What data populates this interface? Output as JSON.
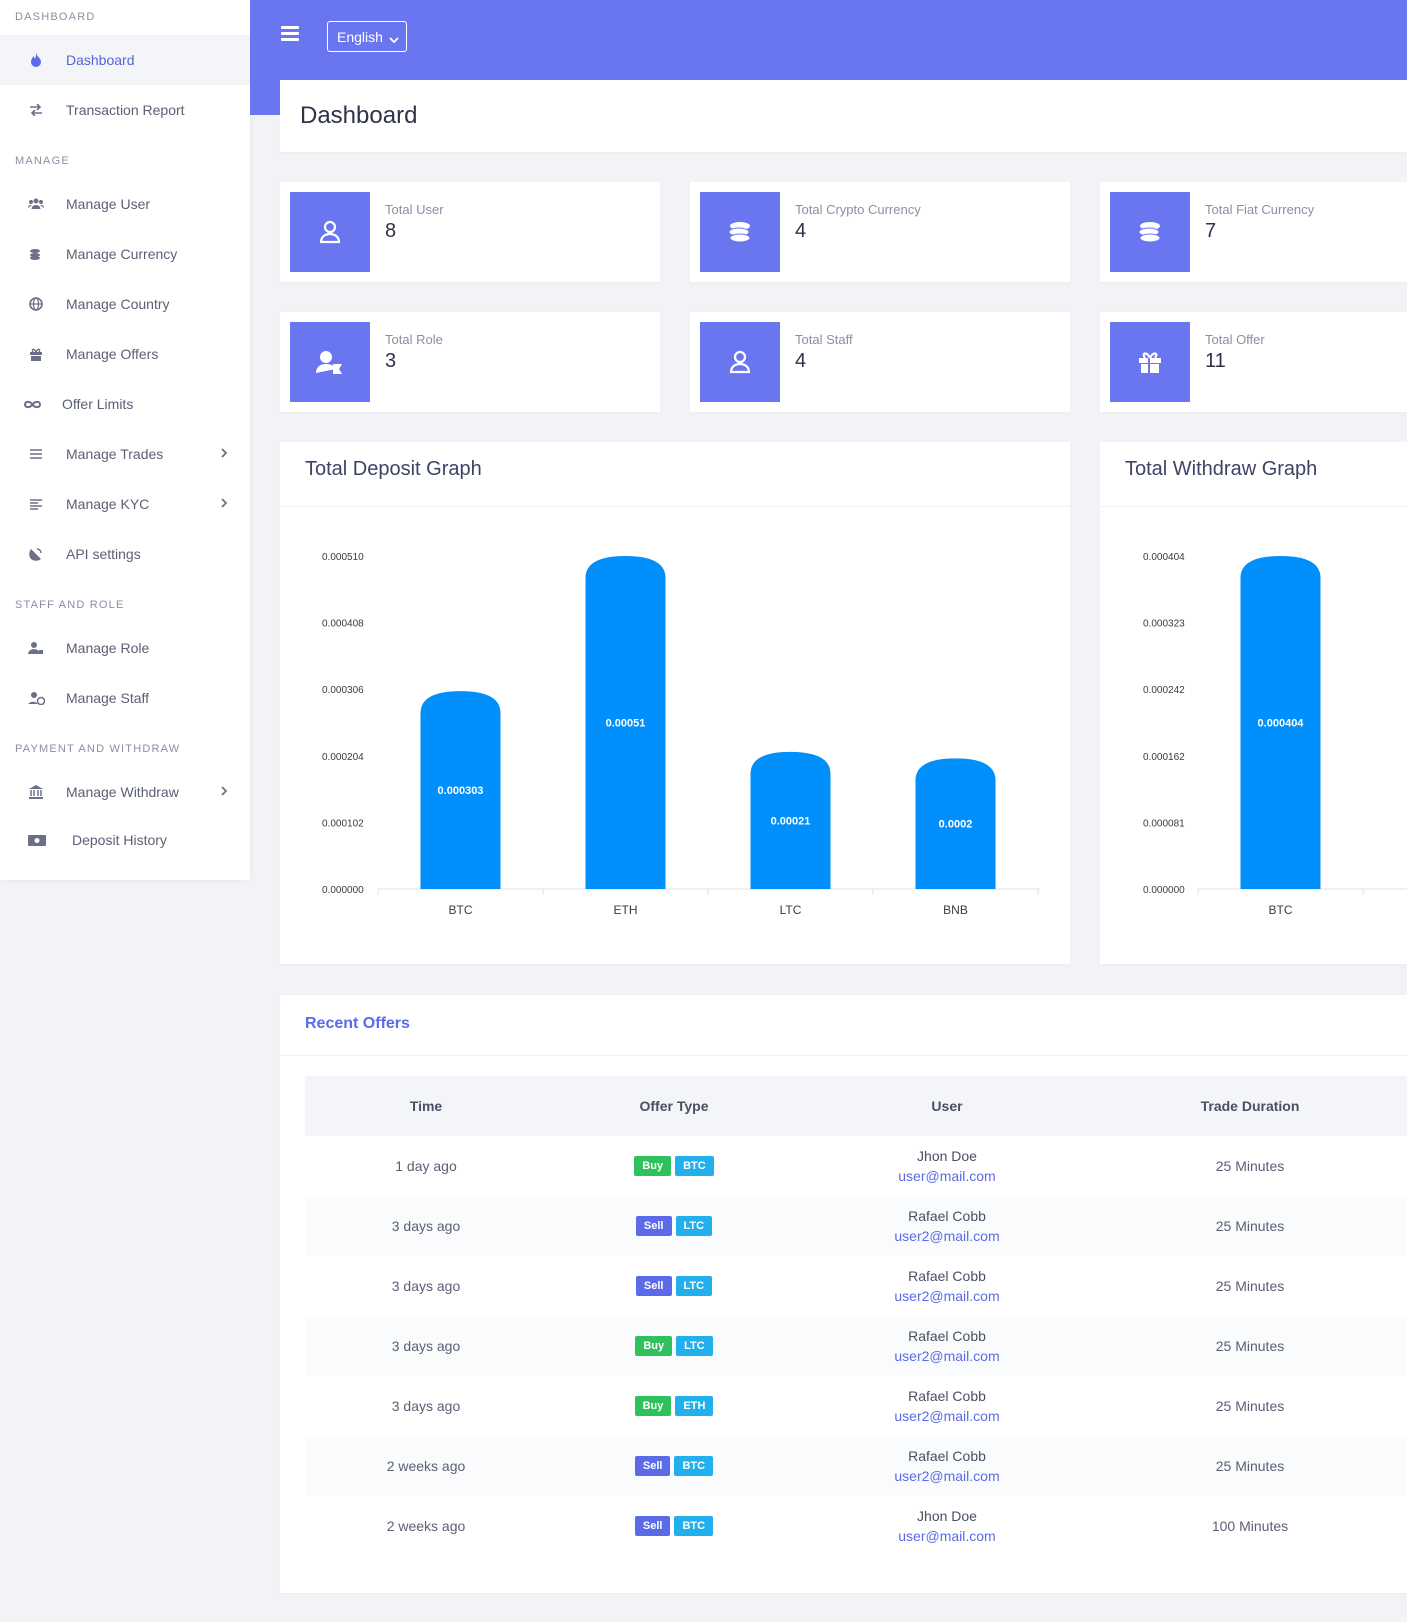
{
  "sidebar": {
    "sections": {
      "dashboard": "DASHBOARD",
      "manage": "MANAGE",
      "staff": "STAFF AND ROLE",
      "payment": "PAYMENT AND WITHDRAW"
    },
    "items": [
      {
        "label": "Dashboard",
        "icon": "fire-icon",
        "active": true
      },
      {
        "label": "Transaction Report",
        "icon": "exchange-icon"
      },
      {
        "label": "Manage User",
        "icon": "users-icon"
      },
      {
        "label": "Manage Currency",
        "icon": "coins-icon"
      },
      {
        "label": "Manage Country",
        "icon": "globe-icon"
      },
      {
        "label": "Manage Offers",
        "icon": "gift-icon"
      },
      {
        "label": "Offer Limits",
        "icon": "infinity-icon"
      },
      {
        "label": "Manage Trades",
        "icon": "list-icon"
      },
      {
        "label": "Manage KYC",
        "icon": "align-left-icon"
      },
      {
        "label": "API settings",
        "icon": "satellite-icon"
      },
      {
        "label": "Manage Role",
        "icon": "user-tag-icon"
      },
      {
        "label": "Manage Staff",
        "icon": "user-clock-icon"
      },
      {
        "label": "Manage Withdraw",
        "icon": "bank-icon"
      },
      {
        "label": "Deposit History",
        "icon": "money-icon"
      }
    ]
  },
  "header": {
    "language": "English",
    "page_title": "Dashboard"
  },
  "stats": [
    {
      "label": "Total User",
      "value": "8",
      "icon": "user-icon"
    },
    {
      "label": "Total Crypto Currency",
      "value": "4",
      "icon": "coins-icon"
    },
    {
      "label": "Total Fiat Currency",
      "value": "7",
      "icon": "coins-icon"
    },
    {
      "label": "Total Role",
      "value": "3",
      "icon": "user-tag-icon"
    },
    {
      "label": "Total Staff",
      "value": "4",
      "icon": "user-icon"
    },
    {
      "label": "Total Offer",
      "value": "11",
      "icon": "gift-icon"
    }
  ],
  "colors": {
    "accent": "#6a76f0",
    "bar": "#008ffb",
    "buy": "#2fc15c",
    "sell": "#5b6ae8",
    "coin": "#22b0ec"
  },
  "chart_data": [
    {
      "type": "bar",
      "title": "Total Deposit Graph",
      "categories": [
        "BTC",
        "ETH",
        "LTC",
        "BNB"
      ],
      "values": [
        0.000303,
        0.00051,
        0.00021,
        0.0002
      ],
      "data_labels": [
        "0.000303",
        "0.00051",
        "0.00021",
        "0.0002"
      ],
      "yticks": [
        "0.000000",
        "0.000102",
        "0.000204",
        "0.000306",
        "0.000408",
        "0.000510"
      ],
      "ylim": [
        0,
        0.00051
      ]
    },
    {
      "type": "bar",
      "title": "Total Withdraw Graph",
      "categories": [
        "BTC"
      ],
      "values": [
        0.000404
      ],
      "data_labels": [
        "0.000404"
      ],
      "yticks": [
        "0.000000",
        "0.000081",
        "0.000162",
        "0.000242",
        "0.000323",
        "0.000404"
      ],
      "ylim": [
        0,
        0.000404
      ]
    }
  ],
  "offers": {
    "title": "Recent Offers",
    "columns": [
      "Time",
      "Offer Type",
      "User",
      "Trade Duration"
    ],
    "rows": [
      {
        "time": "1 day ago",
        "type": "Buy",
        "coin": "BTC",
        "name": "Jhon Doe",
        "email": "user@mail.com",
        "duration": "25 Minutes"
      },
      {
        "time": "3 days ago",
        "type": "Sell",
        "coin": "LTC",
        "name": "Rafael Cobb",
        "email": "user2@mail.com",
        "duration": "25 Minutes"
      },
      {
        "time": "3 days ago",
        "type": "Sell",
        "coin": "LTC",
        "name": "Rafael Cobb",
        "email": "user2@mail.com",
        "duration": "25 Minutes"
      },
      {
        "time": "3 days ago",
        "type": "Buy",
        "coin": "LTC",
        "name": "Rafael Cobb",
        "email": "user2@mail.com",
        "duration": "25 Minutes"
      },
      {
        "time": "3 days ago",
        "type": "Buy",
        "coin": "ETH",
        "name": "Rafael Cobb",
        "email": "user2@mail.com",
        "duration": "25 Minutes"
      },
      {
        "time": "2 weeks ago",
        "type": "Sell",
        "coin": "BTC",
        "name": "Rafael Cobb",
        "email": "user2@mail.com",
        "duration": "25 Minutes"
      },
      {
        "time": "2 weeks ago",
        "type": "Sell",
        "coin": "BTC",
        "name": "Jhon Doe",
        "email": "user@mail.com",
        "duration": "100 Minutes"
      }
    ]
  }
}
